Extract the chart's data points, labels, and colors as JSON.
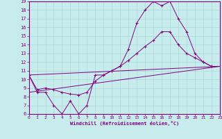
{
  "xlabel": "Windchill (Refroidissement éolien,°C)",
  "bg_color": "#c8ecec",
  "grid_color": "#a8d8d8",
  "line_color": "#800080",
  "xmin": 0,
  "xmax": 23,
  "ymin": 6,
  "ymax": 19,
  "yticks": [
    6,
    7,
    8,
    9,
    10,
    11,
    12,
    13,
    14,
    15,
    16,
    17,
    18,
    19
  ],
  "xticks": [
    0,
    1,
    2,
    3,
    4,
    5,
    6,
    7,
    8,
    9,
    10,
    11,
    12,
    13,
    14,
    15,
    16,
    17,
    18,
    19,
    20,
    21,
    22,
    23
  ],
  "line1_x": [
    0,
    1,
    2,
    3,
    4,
    5,
    6,
    7,
    8,
    9,
    10,
    11,
    12,
    13,
    14,
    15,
    16,
    17,
    18,
    19,
    20,
    21,
    22,
    23
  ],
  "line1_y": [
    10.5,
    8.5,
    8.5,
    7.0,
    6.0,
    7.5,
    6.0,
    7.0,
    10.5,
    10.5,
    11.0,
    11.5,
    13.5,
    16.5,
    18.0,
    19.0,
    18.5,
    19.0,
    17.0,
    15.5,
    13.0,
    12.0,
    11.5,
    11.5
  ],
  "line2_x": [
    0,
    1,
    2,
    3,
    4,
    5,
    6,
    7,
    8,
    9,
    10,
    11,
    12,
    13,
    14,
    15,
    16,
    17,
    18,
    19,
    20,
    21,
    22,
    23
  ],
  "line2_y": [
    10.5,
    8.8,
    9.0,
    8.8,
    8.5,
    8.3,
    8.2,
    8.5,
    9.8,
    10.5,
    11.0,
    11.5,
    12.2,
    13.0,
    13.8,
    14.5,
    15.5,
    15.5,
    14.0,
    13.0,
    12.5,
    12.0,
    11.5,
    11.5
  ],
  "line3_x": [
    0,
    23
  ],
  "line3_y": [
    8.5,
    11.5
  ],
  "line4_x": [
    0,
    23
  ],
  "line4_y": [
    10.5,
    11.5
  ]
}
